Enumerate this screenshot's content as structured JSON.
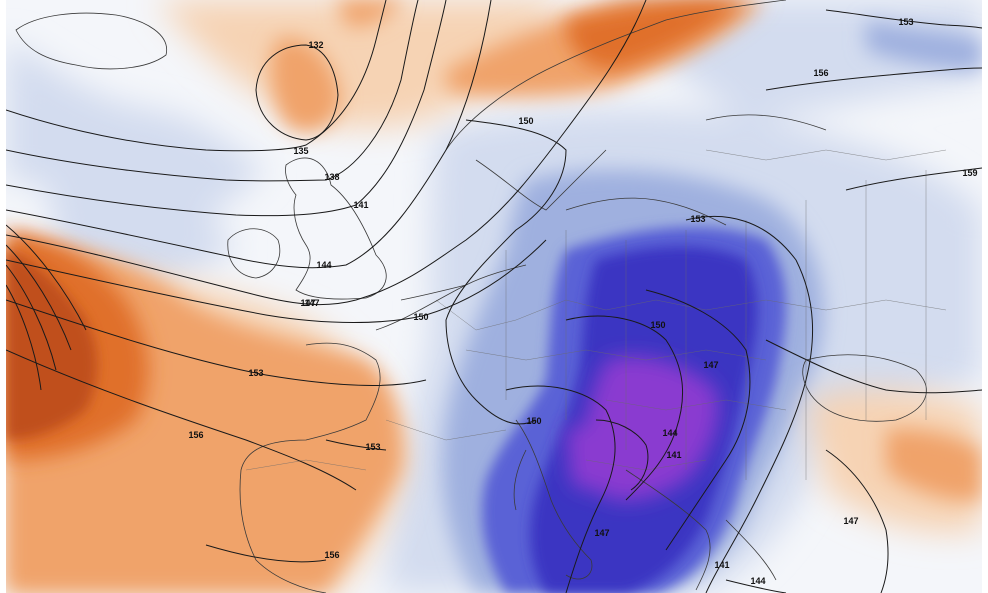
{
  "colors": {
    "warm_light": "#f6d3b4",
    "warm_mid": "#f0a36a",
    "warm_strong": "#e0702a",
    "warm_deep": "#c0501c",
    "cold_light": "#d3dcef",
    "cold_mid": "#9fb0df",
    "cold_strong": "#5a62d6",
    "cold_deep": "#3a36c2",
    "cold_core": "#8a3ad0",
    "land_bg": "#f4f6fa",
    "contour": "#1a1a1a",
    "border": "#555555"
  },
  "contour_labels": [
    {
      "id": "c132",
      "text": "132"
    },
    {
      "id": "c135",
      "text": "135"
    },
    {
      "id": "c138",
      "text": "138"
    },
    {
      "id": "c141a",
      "text": "141"
    },
    {
      "id": "c144a",
      "text": "144"
    },
    {
      "id": "c147a",
      "text": "147"
    },
    {
      "id": "c150a",
      "text": "150"
    },
    {
      "id": "c150b",
      "text": "150"
    },
    {
      "id": "c153a",
      "text": "153"
    },
    {
      "id": "c153b",
      "text": "153"
    },
    {
      "id": "c153c",
      "text": "153"
    },
    {
      "id": "c156a",
      "text": "156"
    },
    {
      "id": "c156b",
      "text": "156"
    },
    {
      "id": "c156c",
      "text": "156"
    },
    {
      "id": "c159",
      "text": "159"
    },
    {
      "id": "c150c",
      "text": "150"
    },
    {
      "id": "c150d",
      "text": "150"
    },
    {
      "id": "c153d",
      "text": "153"
    },
    {
      "id": "c147b",
      "text": "147"
    },
    {
      "id": "c144b",
      "text": "144"
    },
    {
      "id": "c141b",
      "text": "141"
    },
    {
      "id": "c147c",
      "text": "147"
    },
    {
      "id": "c147d",
      "text": "147"
    },
    {
      "id": "c141c",
      "text": "141"
    },
    {
      "id": "c144c",
      "text": "144"
    },
    {
      "id": "c147e",
      "text": "147"
    }
  ]
}
